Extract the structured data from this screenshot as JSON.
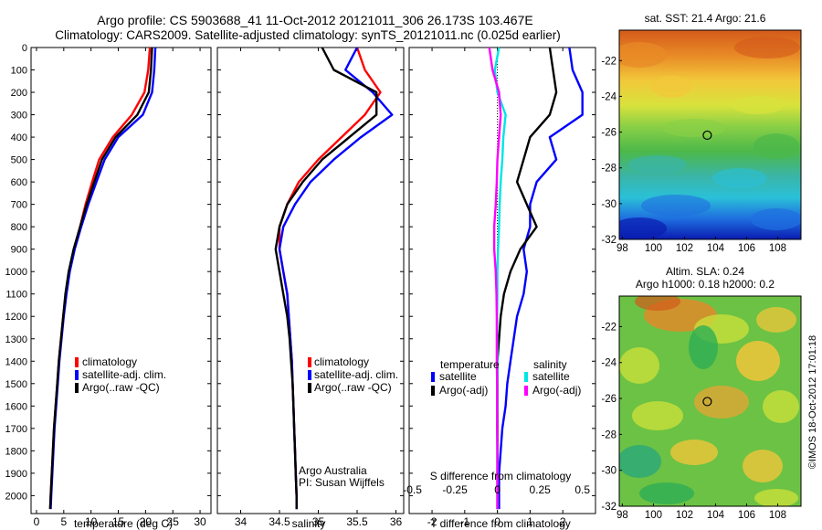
{
  "header": {
    "line1": "Argo profile: CS 5903688_41 11-Oct-2012 20121011_306 26.173S 103.467E",
    "line2": "Climatology: CARS2009. Satellite-adjusted climatology: synTS_20121011.nc (0.025d earlier)"
  },
  "colors": {
    "climatology": "#ff0000",
    "satellite": "#0000ff",
    "argo": "#000000",
    "sal_satellite": "#00e5e5",
    "sal_argo": "#ff00ff"
  },
  "shared_y": {
    "ylim": [
      0,
      2080
    ],
    "ticks": [
      "0",
      "100",
      "200",
      "300",
      "400",
      "500",
      "600",
      "700",
      "800",
      "900",
      "1000",
      "1100",
      "1200",
      "1300",
      "1400",
      "1500",
      "1600",
      "1700",
      "1800",
      "1900",
      "2000"
    ]
  },
  "chart_data": [
    {
      "id": "temperature",
      "type": "line",
      "title": "",
      "xlabel": "temperature (deg C)",
      "ylabel": "",
      "xlim": [
        -1,
        32
      ],
      "xticks": [
        0,
        5,
        10,
        15,
        20,
        25,
        30
      ],
      "xtick_labels": [
        "0",
        "5",
        "10",
        "15",
        "20",
        "25",
        "30"
      ],
      "ylim": [
        0,
        2080
      ],
      "legend": {
        "placement": "lower-center",
        "entries": [
          "climatology",
          "satellite-adj. clim.",
          "Argo(..raw -QC)"
        ],
        "colors": [
          "#ff0000",
          "#0000ff",
          "#000000"
        ]
      },
      "series": [
        {
          "name": "climatology",
          "color": "#ff0000",
          "x": [
            20.8,
            20.5,
            19.8,
            17.5,
            14.0,
            11.5,
            10.2,
            9.0,
            8.0,
            6.9,
            6.0,
            5.4,
            4.9,
            4.5,
            4.1,
            3.8,
            3.5,
            3.2,
            3.0,
            2.8,
            2.6,
            2.5
          ],
          "y": [
            0,
            100,
            200,
            300,
            400,
            500,
            600,
            700,
            800,
            900,
            1000,
            1100,
            1200,
            1300,
            1400,
            1500,
            1600,
            1700,
            1800,
            1900,
            2000,
            2060
          ]
        },
        {
          "name": "satellite-adj. clim.",
          "color": "#0000ff",
          "x": [
            21.8,
            21.6,
            21.2,
            19.5,
            15.0,
            12.5,
            11.0,
            9.5,
            8.2,
            7.0,
            6.1,
            5.5,
            5.0,
            4.6,
            4.2,
            3.9,
            3.6,
            3.3,
            3.1,
            2.9,
            2.7,
            2.6
          ],
          "y": [
            0,
            100,
            200,
            300,
            400,
            500,
            600,
            700,
            800,
            900,
            1000,
            1100,
            1200,
            1300,
            1400,
            1500,
            1600,
            1700,
            1800,
            1900,
            2000,
            2060
          ]
        },
        {
          "name": "Argo(..raw -QC)",
          "color": "#000000",
          "x": [
            21.2,
            21.0,
            20.6,
            18.5,
            14.5,
            12.0,
            10.6,
            9.2,
            8.0,
            6.8,
            5.9,
            5.3,
            4.9,
            4.5,
            4.1,
            3.8,
            3.5,
            3.2,
            3.0,
            2.8,
            2.6,
            2.5
          ],
          "y": [
            0,
            100,
            200,
            300,
            400,
            500,
            600,
            700,
            800,
            900,
            1000,
            1100,
            1200,
            1300,
            1400,
            1500,
            1600,
            1700,
            1800,
            1900,
            2000,
            2060
          ]
        }
      ]
    },
    {
      "id": "salinity",
      "type": "line",
      "title": "",
      "xlabel": "salinity",
      "ylabel": "",
      "xlim": [
        33.7,
        36.1
      ],
      "xticks": [
        34,
        34.5,
        35,
        35.5,
        36
      ],
      "xtick_labels": [
        "34",
        "34.5",
        "35",
        "35.5",
        "36"
      ],
      "ylim": [
        0,
        2080
      ],
      "legend": {
        "placement": "lower-right",
        "entries": [
          "climatology",
          "satellite-adj. clim.",
          "Argo(..raw -QC)"
        ],
        "colors": [
          "#ff0000",
          "#0000ff",
          "#000000"
        ]
      },
      "annotation": {
        "line1": "Argo Australia",
        "line2": "PI: Susan Wijffels"
      },
      "series": [
        {
          "name": "climatology",
          "color": "#ff0000",
          "x": [
            35.5,
            35.6,
            35.8,
            35.6,
            35.3,
            35.0,
            34.75,
            34.6,
            34.5,
            34.5,
            34.55,
            34.6,
            34.62,
            34.64,
            34.66,
            34.67,
            34.68,
            34.69,
            34.7,
            34.71,
            34.72,
            34.72
          ],
          "y": [
            0,
            100,
            200,
            300,
            400,
            500,
            600,
            700,
            800,
            900,
            1000,
            1100,
            1200,
            1300,
            1400,
            1500,
            1600,
            1700,
            1800,
            1900,
            2000,
            2060
          ]
        },
        {
          "name": "satellite-adj. clim.",
          "color": "#0000ff",
          "x": [
            35.5,
            35.35,
            35.7,
            35.95,
            35.55,
            35.2,
            34.9,
            34.7,
            34.55,
            34.5,
            34.55,
            34.6,
            34.62,
            34.64,
            34.66,
            34.67,
            34.68,
            34.69,
            34.7,
            34.71,
            34.72,
            34.72
          ],
          "y": [
            0,
            100,
            200,
            300,
            400,
            500,
            600,
            700,
            800,
            900,
            1000,
            1100,
            1200,
            1300,
            1400,
            1500,
            1600,
            1700,
            1800,
            1900,
            2000,
            2060
          ]
        },
        {
          "name": "Argo(..raw -QC)",
          "color": "#000000",
          "x": [
            35.05,
            35.2,
            35.75,
            35.75,
            35.4,
            35.05,
            34.8,
            34.6,
            34.5,
            34.45,
            34.5,
            34.55,
            34.6,
            34.63,
            34.65,
            34.67,
            34.68,
            34.69,
            34.7,
            34.71,
            34.72,
            34.72
          ],
          "y": [
            0,
            100,
            200,
            300,
            400,
            500,
            600,
            700,
            800,
            900,
            1000,
            1100,
            1200,
            1300,
            1400,
            1500,
            1600,
            1700,
            1800,
            1900,
            2000,
            2060
          ]
        }
      ]
    },
    {
      "id": "differences",
      "type": "line",
      "title": "",
      "xlabel": "T difference from climatology",
      "xlabel_top": "S difference from climatology",
      "ylabel": "",
      "xlim": [
        -2.7,
        3.0
      ],
      "xticks": [
        -2,
        -1,
        0,
        1,
        2
      ],
      "xtick_labels": [
        "-2",
        "-1",
        "0",
        "1",
        "2"
      ],
      "s_xticks": [
        -0.5,
        -0.25,
        0,
        0.25,
        0.5
      ],
      "s_xtick_labels": [
        "-0.5",
        "-0.25",
        "0",
        "0.25",
        "0.5"
      ],
      "ylim": [
        0,
        2080
      ],
      "zero_line": "dotted",
      "legend": {
        "placement": "lower-center",
        "temp_heading": "temperature",
        "sal_heading": "salinity",
        "temp_entries": [
          "satellite",
          "Argo(-adj)"
        ],
        "temp_colors": [
          "#0000ff",
          "#000000"
        ],
        "sal_entries": [
          "satellite",
          "Argo(-adj)"
        ],
        "sal_colors": [
          "#00e5e5",
          "#ff00ff"
        ]
      },
      "series": [
        {
          "name": "T satellite",
          "color": "#0000ff",
          "x": [
            2.2,
            2.3,
            2.6,
            2.6,
            1.6,
            1.8,
            1.2,
            1.0,
            1.0,
            0.8,
            0.9,
            0.8,
            0.6,
            0.5,
            0.4,
            0.3,
            0.25,
            0.15,
            0.1,
            0.05,
            0.05,
            0.05
          ],
          "y": [
            0,
            100,
            200,
            300,
            400,
            500,
            600,
            700,
            800,
            900,
            1000,
            1100,
            1200,
            1300,
            1400,
            1500,
            1600,
            1700,
            1800,
            1900,
            2000,
            2060
          ]
        },
        {
          "name": "T Argo(-adj)",
          "color": "#000000",
          "x": [
            1.6,
            1.7,
            1.8,
            1.6,
            1.0,
            0.8,
            0.6,
            0.9,
            1.2,
            0.7,
            0.4,
            0.2,
            0.1,
            0.05,
            0.0,
            0.0,
            0.0,
            0.0,
            0.0,
            0.0,
            0.0,
            0.0
          ],
          "y": [
            0,
            100,
            200,
            300,
            400,
            500,
            600,
            700,
            800,
            900,
            1000,
            1100,
            1200,
            1300,
            1400,
            1500,
            1600,
            1700,
            1800,
            1900,
            2000,
            2060
          ]
        },
        {
          "name": "S satellite",
          "color": "#00e5e5",
          "x": [
            0.05,
            -0.08,
            0.0,
            0.25,
            0.18,
            0.15,
            0.1,
            0.07,
            0.05,
            0.02,
            0.0,
            0.0,
            -0.01,
            -0.01,
            0.0,
            0.0,
            0.0,
            -0.01,
            0.0,
            0.0,
            0.0,
            0.0
          ],
          "y": [
            0,
            100,
            200,
            300,
            400,
            500,
            600,
            700,
            800,
            900,
            1000,
            1100,
            1200,
            1300,
            1400,
            1500,
            1600,
            1700,
            1800,
            1900,
            2000,
            2060
          ]
        },
        {
          "name": "S Argo(-adj)",
          "color": "#ff00ff",
          "x": [
            -0.25,
            -0.15,
            0.05,
            0.1,
            0.05,
            0.0,
            -0.02,
            -0.05,
            -0.1,
            -0.1,
            -0.05,
            -0.03,
            -0.02,
            -0.02,
            -0.02,
            -0.01,
            -0.01,
            -0.01,
            0.0,
            0.0,
            0.0,
            0.0
          ],
          "y": [
            0,
            100,
            200,
            300,
            400,
            500,
            600,
            700,
            800,
            900,
            1000,
            1100,
            1200,
            1300,
            1400,
            1500,
            1600,
            1700,
            1800,
            1900,
            2000,
            2060
          ]
        }
      ]
    },
    {
      "id": "sst-map",
      "type": "heatmap",
      "title": "sat. SST: 21.4  Argo: 21.6",
      "xlim": [
        97.8,
        109.5
      ],
      "ylim": [
        -32,
        -20.3
      ],
      "xticks": [
        98,
        100,
        102,
        104,
        106,
        108
      ],
      "xtick_labels": [
        "98",
        "100",
        "102",
        "104",
        "106",
        "108"
      ],
      "yticks": [
        -32,
        -30,
        -28,
        -26,
        -24,
        -22
      ],
      "ytick_labels": [
        "-32",
        "-30",
        "-28",
        "-26",
        "-24",
        "-22"
      ],
      "marker": {
        "lon": 103.467,
        "lat": -26.173
      }
    },
    {
      "id": "sla-map",
      "type": "heatmap",
      "title_line1": "Altim. SLA: 0.24",
      "title_line2": "Argo h1000: 0.18  h2000: 0.2",
      "xlim": [
        97.8,
        109.5
      ],
      "ylim": [
        -32,
        -20.3
      ],
      "xticks": [
        98,
        100,
        102,
        104,
        106,
        108
      ],
      "xtick_labels": [
        "98",
        "100",
        "102",
        "104",
        "106",
        "108"
      ],
      "yticks": [
        -32,
        -30,
        -28,
        -26,
        -24,
        -22
      ],
      "ytick_labels": [
        "-32",
        "-30",
        "-28",
        "-26",
        "-24",
        "-22"
      ],
      "marker": {
        "lon": 103.467,
        "lat": -26.173
      }
    }
  ],
  "credit": "©IMOS 18-Oct-2012 17:01:18"
}
